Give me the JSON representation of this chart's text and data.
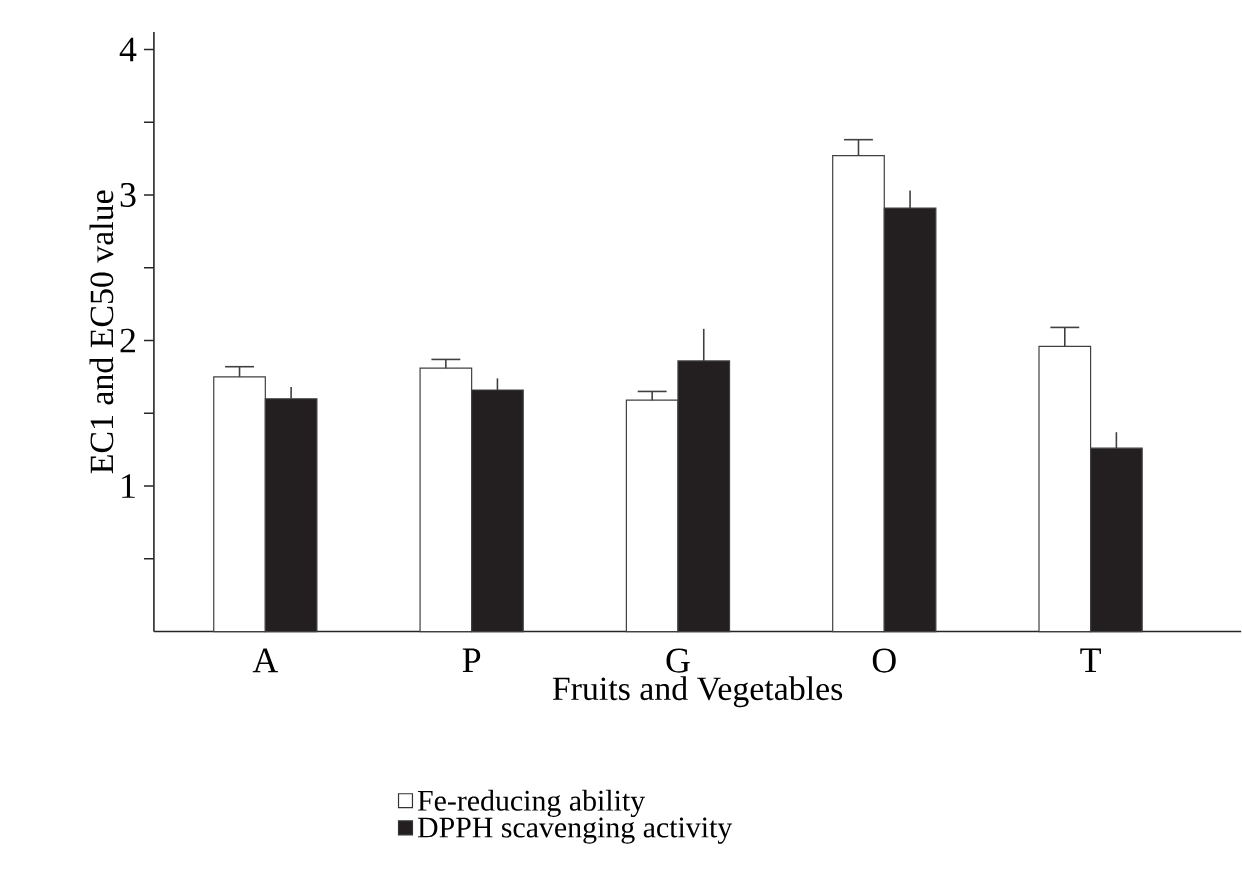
{
  "chart_data": {
    "type": "bar",
    "xlabel": "Fruits and Vegetables",
    "ylabel": "EC1 and EC50 value",
    "categories": [
      "A",
      "P",
      "G",
      "O",
      "T"
    ],
    "series": [
      {
        "name": "Fe-reducing ability",
        "color": "#ffffff",
        "values": [
          1.75,
          1.81,
          1.59,
          3.27,
          1.96
        ],
        "errors": [
          [
            1.75,
            1.82
          ],
          [
            1.81,
            1.87
          ],
          [
            1.59,
            1.65
          ],
          [
            3.27,
            3.38
          ],
          [
            1.96,
            2.09
          ]
        ]
      },
      {
        "name": "DPPH scavenging activity",
        "color": "#231f20",
        "values": [
          1.6,
          1.66,
          1.86,
          2.91,
          1.26
        ],
        "errors": [
          [
            1.6,
            1.68
          ],
          [
            1.66,
            1.74
          ],
          [
            1.86,
            2.08
          ],
          [
            2.91,
            3.03
          ],
          [
            1.26,
            1.37
          ]
        ]
      }
    ],
    "ylim": [
      0,
      4.12
    ],
    "yticks": [
      {
        "value": 0.5,
        "label": null
      },
      1,
      {
        "value": 1.5,
        "label": null
      },
      2,
      {
        "value": 2.5,
        "label": null
      },
      3,
      {
        "value": 3.5,
        "label": null
      },
      4
    ],
    "legend": "bottom"
  }
}
